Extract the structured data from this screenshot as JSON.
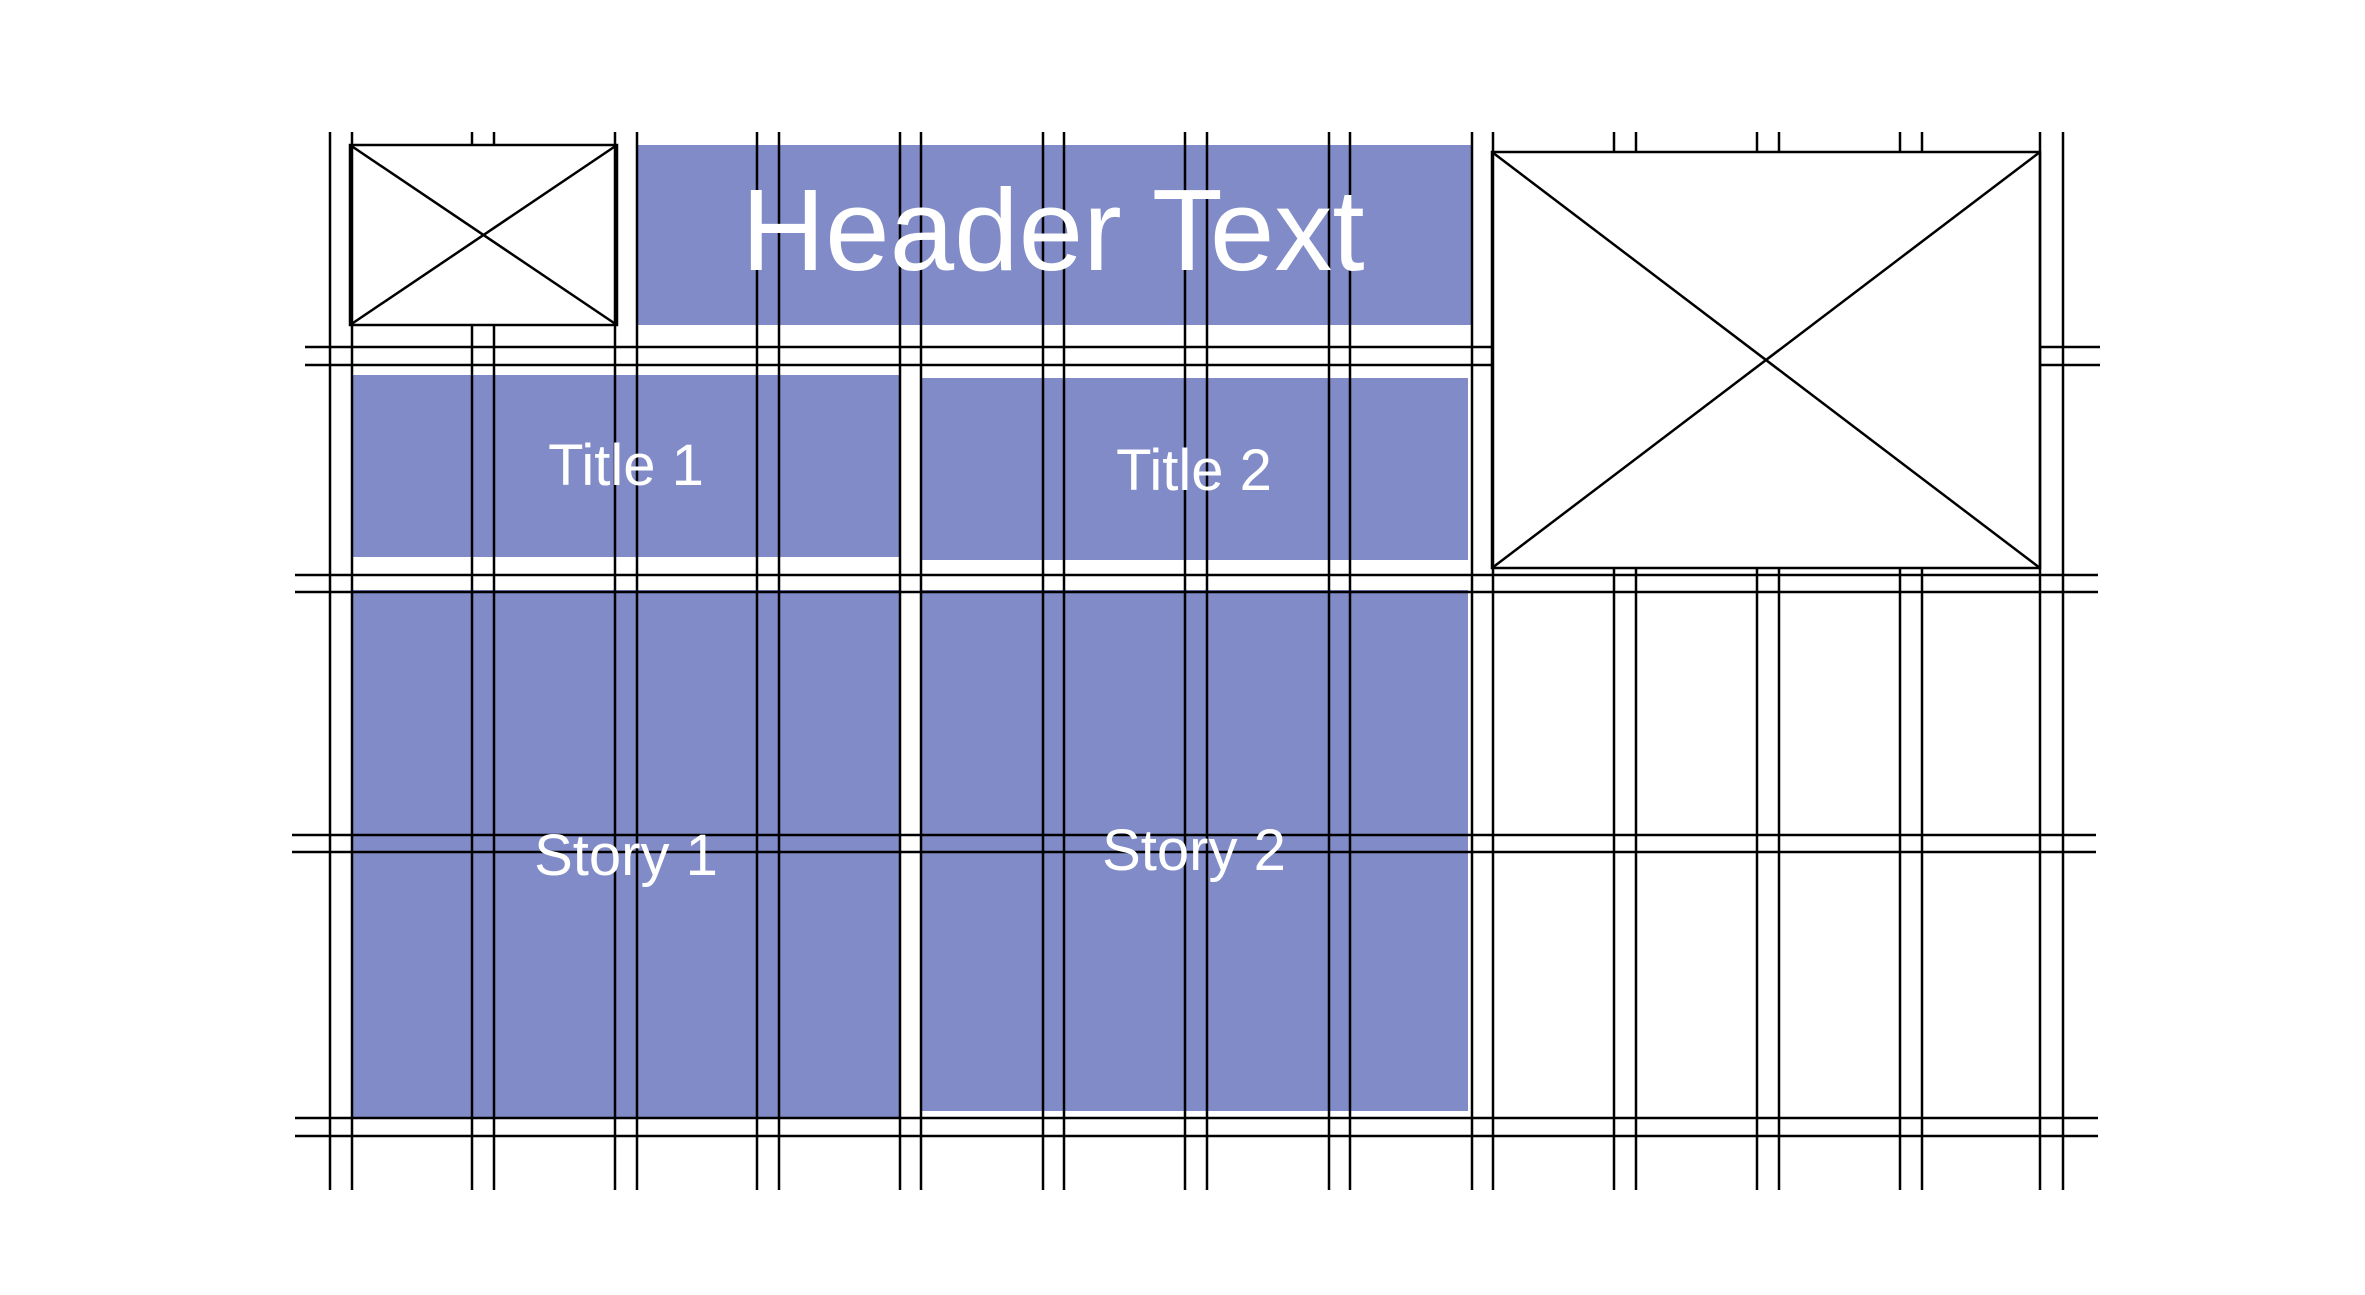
{
  "colors": {
    "block_fill": "#808BC8",
    "grid_line": "#000000",
    "text": "#FFFFFF",
    "background": "#FFFFFF"
  },
  "header": {
    "text": "Header Text"
  },
  "titles": [
    {
      "text": "Title 1"
    },
    {
      "text": "Title 2"
    }
  ],
  "stories": [
    {
      "text": "Story 1"
    },
    {
      "text": "Story 2"
    }
  ],
  "placeholders": [
    {
      "icon": "image-placeholder-icon"
    },
    {
      "icon": "image-placeholder-icon"
    }
  ]
}
